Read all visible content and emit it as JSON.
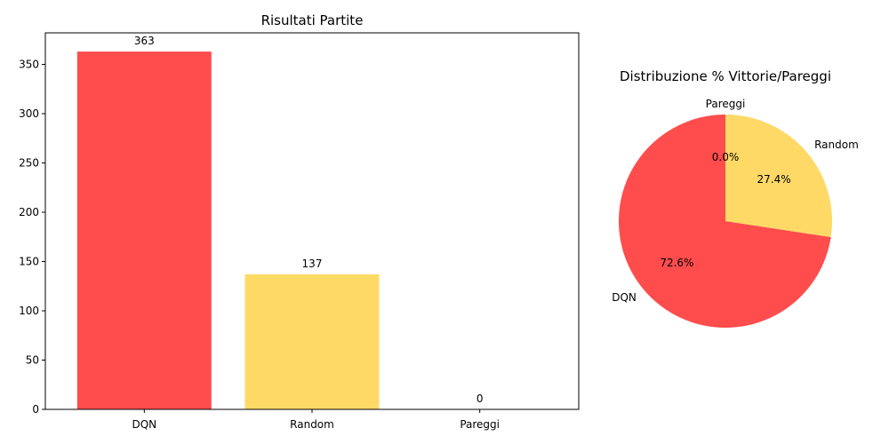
{
  "chart_data": [
    {
      "type": "bar",
      "title": "Risultati Partite",
      "xlabel": "",
      "ylabel": "",
      "categories": [
        "DQN",
        "Random",
        "Pareggi"
      ],
      "values": [
        363,
        137,
        0
      ],
      "colors": [
        "#ff4c4c",
        "#ffd966",
        "#66b3ff"
      ],
      "ylim": [
        0,
        382
      ],
      "yticks": [
        0,
        50,
        100,
        150,
        200,
        250,
        300,
        350
      ],
      "data_labels": [
        "363",
        "137",
        "0"
      ],
      "grid": false,
      "legend": "none"
    },
    {
      "type": "pie",
      "title": "Distribuzione % Vittorie/Pareggi",
      "labels": [
        "DQN",
        "Random",
        "Pareggi"
      ],
      "values": [
        72.6,
        27.4,
        0.0
      ],
      "percent_labels": [
        "72.6%",
        "27.4%",
        "0.0%"
      ],
      "colors": [
        "#ff4c4c",
        "#ffd966",
        "#66b3ff"
      ],
      "start_angle_deg": 90,
      "direction": "counterclockwise",
      "legend": "none"
    }
  ]
}
